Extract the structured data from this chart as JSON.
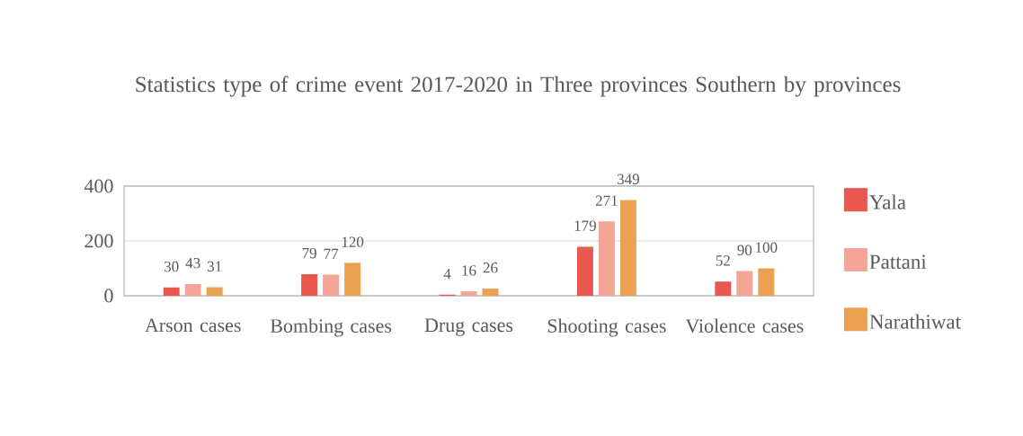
{
  "chart_data": {
    "type": "bar",
    "title": "Statistics type of crime event 2017-2020 in Three provinces Southern by provinces",
    "categories": [
      "Arson cases",
      "Bombing cases",
      "Drug cases",
      "Shooting cases",
      "Violence cases"
    ],
    "series": [
      {
        "name": "Yala",
        "color": "#e8584e",
        "values": [
          30,
          79,
          4,
          179,
          52
        ]
      },
      {
        "name": "Pattani",
        "color": "#f4a598",
        "values": [
          43,
          77,
          16,
          271,
          90
        ]
      },
      {
        "name": "Narathiwat",
        "color": "#eba152",
        "values": [
          31,
          120,
          26,
          349,
          100
        ]
      }
    ],
    "ylim": [
      0,
      400
    ],
    "yticks": [
      0,
      200,
      400
    ],
    "grid": "y",
    "legend": "right",
    "data_labels": true
  }
}
